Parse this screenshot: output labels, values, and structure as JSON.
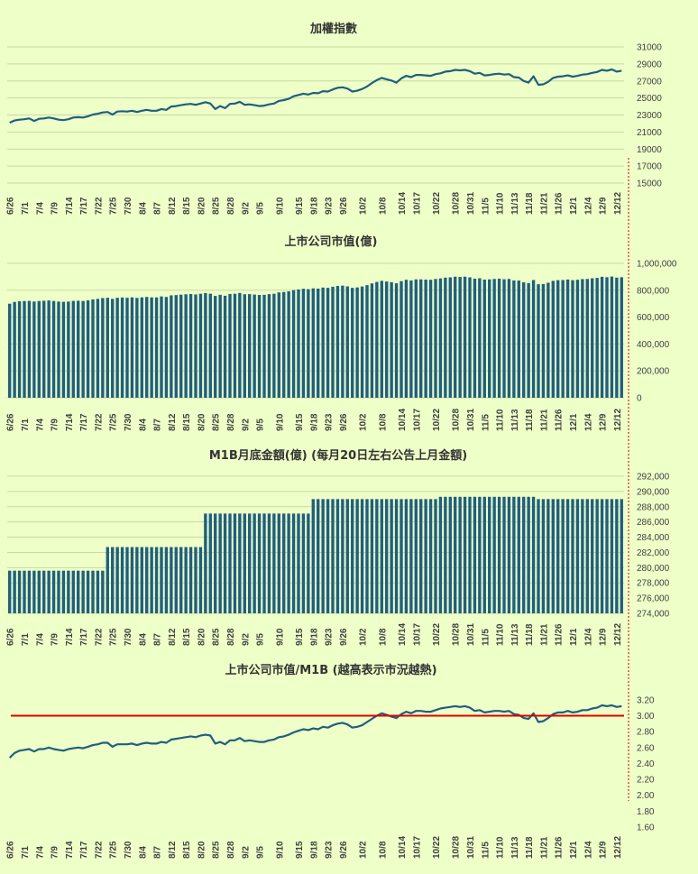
{
  "colors": {
    "background": "#EEFFC8",
    "series": "#1F5F7F",
    "bars": "#1F5F7F",
    "threshold": "#E00000",
    "divider": "#CC0000",
    "grid": "#C9D9A6",
    "text": "#404040"
  },
  "x_ticks": [
    "6/26",
    "7/1",
    "7/4",
    "7/9",
    "7/14",
    "7/17",
    "7/22",
    "7/25",
    "7/30",
    "8/4",
    "8/7",
    "8/12",
    "8/15",
    "8/20",
    "8/25",
    "8/28",
    "9/2",
    "9/5",
    "9/10",
    "9/15",
    "9/18",
    "9/23",
    "9/26",
    "10/2",
    "10/8",
    "10/14",
    "10/17",
    "10/22",
    "10/28",
    "10/31",
    "11/5",
    "11/10",
    "11/13",
    "11/18",
    "11/21",
    "11/26",
    "12/1",
    "12/4",
    "12/9",
    "12/12"
  ],
  "chart_data": [
    {
      "id": "taiex",
      "type": "line",
      "title": "加權指數",
      "ylim": [
        15000,
        31000
      ],
      "yticks": [
        15000,
        17000,
        19000,
        21000,
        23000,
        25000,
        27000,
        29000,
        31000
      ],
      "ytick_labels": [
        "15000",
        "17000",
        "19000",
        "21000",
        "23000",
        "25000",
        "27000",
        "29000",
        "31000"
      ],
      "grid": true,
      "values": [
        22100,
        22350,
        22450,
        22500,
        22600,
        22300,
        22550,
        22600,
        22700,
        22600,
        22450,
        22400,
        22500,
        22700,
        22750,
        22700,
        22850,
        23050,
        23150,
        23300,
        23350,
        23050,
        23400,
        23450,
        23400,
        23500,
        23350,
        23500,
        23600,
        23500,
        23500,
        23700,
        23600,
        24000,
        24050,
        24150,
        24250,
        24300,
        24200,
        24350,
        24500,
        24350,
        23700,
        24050,
        23800,
        24300,
        24350,
        24550,
        24200,
        24250,
        24150,
        24050,
        24100,
        24250,
        24350,
        24650,
        24750,
        24900,
        25200,
        25350,
        25500,
        25400,
        25600,
        25550,
        25800,
        25750,
        26000,
        26200,
        26250,
        26100,
        25750,
        25850,
        26050,
        26350,
        26750,
        27100,
        27350,
        27200,
        27050,
        26800,
        27300,
        27600,
        27450,
        27700,
        27700,
        27650,
        27600,
        27800,
        27900,
        28100,
        28150,
        28300,
        28250,
        28300,
        28150,
        27850,
        27950,
        27650,
        27700,
        27800,
        27850,
        27750,
        27800,
        27450,
        27400,
        27000,
        26800,
        27550,
        26550,
        26600,
        26900,
        27350,
        27500,
        27550,
        27650,
        27500,
        27600,
        27750,
        27800,
        27950,
        28050,
        28300,
        28200,
        28350,
        28100,
        28200
      ],
      "tick_indices": [
        0,
        3,
        6,
        9,
        12,
        15,
        18,
        21,
        24,
        27,
        30,
        33,
        36,
        39,
        42,
        45,
        48,
        51,
        55,
        59,
        62,
        65,
        68,
        72,
        76,
        80,
        83,
        87,
        91,
        94,
        97,
        100,
        103,
        106,
        109,
        112,
        115,
        118,
        121,
        124
      ]
    },
    {
      "id": "market_cap",
      "type": "bar",
      "title": "上市公司市值(億)",
      "ylim": [
        0,
        1000000
      ],
      "yticks": [
        0,
        200000,
        400000,
        600000,
        800000,
        1000000
      ],
      "ytick_labels": [
        "0",
        "200,000",
        "400,000",
        "600,000",
        "800,000",
        "1,000,000"
      ],
      "grid": true,
      "values": [
        700000,
        713000,
        718000,
        720000,
        721000,
        716000,
        720000,
        722000,
        724000,
        720000,
        716000,
        714000,
        716000,
        721000,
        722000,
        720000,
        725000,
        732000,
        736000,
        742000,
        744000,
        736000,
        744000,
        746000,
        744000,
        747000,
        743000,
        747000,
        750000,
        747000,
        747000,
        754000,
        750000,
        762000,
        764000,
        767000,
        770000,
        772000,
        769000,
        774000,
        779000,
        774000,
        758000,
        766000,
        759000,
        772000,
        774000,
        780000,
        770000,
        771000,
        768000,
        765000,
        766000,
        771000,
        774000,
        784000,
        787000,
        792000,
        801000,
        806000,
        811000,
        808000,
        814000,
        812000,
        820000,
        818000,
        826000,
        832000,
        834000,
        829000,
        818000,
        821000,
        828000,
        838000,
        851000,
        862000,
        870000,
        865000,
        860000,
        852000,
        868000,
        878000,
        873000,
        881000,
        881000,
        879000,
        878000,
        884000,
        888000,
        894000,
        896000,
        901000,
        899000,
        901000,
        896000,
        886000,
        889000,
        879000,
        881000,
        884000,
        886000,
        882000,
        884000,
        873000,
        872000,
        859000,
        853000,
        876000,
        845000,
        846000,
        856000,
        870000,
        875000,
        876000,
        880000,
        875000,
        878000,
        883000,
        884000,
        889000,
        892000,
        900000,
        897000,
        902000,
        894000,
        897000
      ]
    },
    {
      "id": "m1b",
      "type": "bar",
      "title": "M1B月底金額(億) (每月20日左右公告上月金額)",
      "ylim": [
        274000,
        292000
      ],
      "yticks": [
        274000,
        276000,
        278000,
        280000,
        282000,
        284000,
        286000,
        288000,
        290000,
        292000
      ],
      "ytick_labels": [
        "274,000",
        "276,000",
        "278,000",
        "280,000",
        "282,000",
        "284,000",
        "286,000",
        "288,000",
        "290,000",
        "292,000"
      ],
      "grid": true,
      "segments": [
        {
          "count": 20,
          "value": 279600
        },
        {
          "count": 20,
          "value": 282700
        },
        {
          "count": 22,
          "value": 287100
        },
        {
          "count": 26,
          "value": 289000
        },
        {
          "count": 20,
          "value": 289300
        },
        {
          "count": 18,
          "value": 289000
        }
      ]
    },
    {
      "id": "ratio",
      "type": "line",
      "title": "上市公司市值/M1B (越高表示市況越熱)",
      "ylim": [
        1.6,
        3.3
      ],
      "yticks": [
        1.6,
        1.8,
        2.0,
        2.2,
        2.4,
        2.6,
        2.8,
        3.0,
        3.2
      ],
      "ytick_labels": [
        "1.60",
        "1.80",
        "2.00",
        "2.20",
        "2.40",
        "2.60",
        "2.80",
        "3.00",
        "3.20"
      ],
      "grid": false,
      "threshold": 3.0,
      "values": [
        2.47,
        2.53,
        2.56,
        2.57,
        2.58,
        2.55,
        2.58,
        2.58,
        2.6,
        2.58,
        2.57,
        2.56,
        2.58,
        2.59,
        2.6,
        2.59,
        2.61,
        2.63,
        2.64,
        2.66,
        2.66,
        2.61,
        2.64,
        2.64,
        2.64,
        2.65,
        2.63,
        2.65,
        2.66,
        2.65,
        2.65,
        2.67,
        2.66,
        2.7,
        2.71,
        2.72,
        2.73,
        2.74,
        2.73,
        2.75,
        2.76,
        2.75,
        2.65,
        2.67,
        2.64,
        2.69,
        2.69,
        2.72,
        2.68,
        2.69,
        2.68,
        2.67,
        2.67,
        2.69,
        2.7,
        2.73,
        2.74,
        2.76,
        2.79,
        2.81,
        2.83,
        2.82,
        2.84,
        2.83,
        2.86,
        2.85,
        2.88,
        2.9,
        2.91,
        2.89,
        2.85,
        2.86,
        2.88,
        2.92,
        2.96,
        3.0,
        3.03,
        3.01,
        2.99,
        2.97,
        3.02,
        3.05,
        3.03,
        3.06,
        3.06,
        3.05,
        3.05,
        3.07,
        3.09,
        3.1,
        3.11,
        3.12,
        3.11,
        3.12,
        3.1,
        3.06,
        3.07,
        3.04,
        3.05,
        3.06,
        3.06,
        3.05,
        3.06,
        3.02,
        3.01,
        2.97,
        2.96,
        3.03,
        2.92,
        2.93,
        2.97,
        3.02,
        3.04,
        3.04,
        3.06,
        3.04,
        3.05,
        3.07,
        3.07,
        3.09,
        3.1,
        3.13,
        3.12,
        3.13,
        3.11,
        3.12
      ]
    }
  ]
}
